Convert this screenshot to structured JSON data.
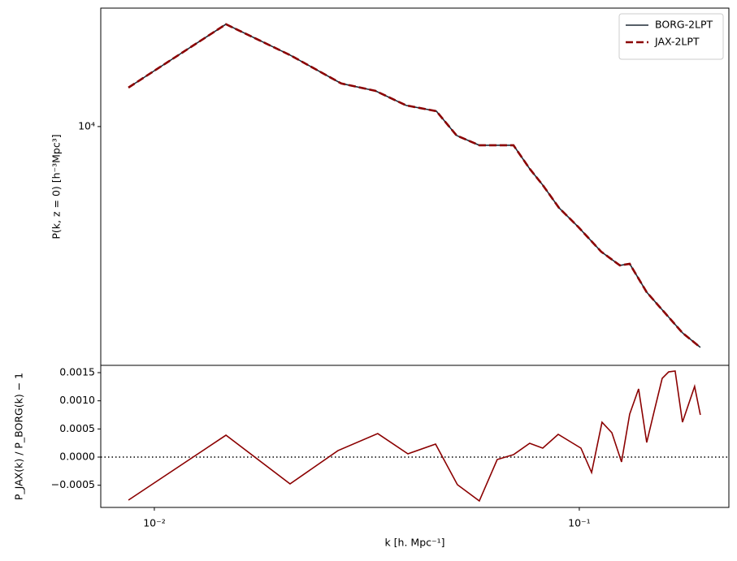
{
  "chart_data": [
    {
      "type": "line",
      "xscale": "log",
      "yscale": "log",
      "ylabel": "P(k, z = 0) [h⁻³Mpc³]",
      "xlim": [
        0.00748,
        0.2249
      ],
      "ylim": [
        1778,
        23550
      ],
      "yticks": [
        {
          "value": 10000,
          "label": "10⁴"
        }
      ],
      "legend": "upper right",
      "x": [
        0.00869,
        0.01474,
        0.02086,
        0.02753,
        0.03312,
        0.03915,
        0.04609,
        0.05143,
        0.05817,
        0.07,
        0.07642,
        0.08203,
        0.08958,
        0.09956,
        0.1126,
        0.1246,
        0.1314,
        0.1441,
        0.1588,
        0.1749,
        0.1927
      ],
      "series": [
        {
          "name": "BORG-2LPT",
          "color": "#1f2a36",
          "linestyle": "solid",
          "values": [
            13255,
            20960,
            16770,
            13655,
            12950,
            11650,
            11180,
            9375,
            8735,
            8735,
            7370,
            6550,
            5555,
            4830,
            4045,
            3663,
            3706,
            3017,
            2604,
            2249,
            2024
          ]
        },
        {
          "name": "JAX-2LPT",
          "color": "#8b0000",
          "linestyle": "dashed",
          "values": [
            13255,
            20960,
            16770,
            13655,
            12950,
            11650,
            11180,
            9375,
            8735,
            8735,
            7370,
            6550,
            5555,
            4830,
            4045,
            3663,
            3706,
            3017,
            2604,
            2249,
            2024
          ]
        }
      ]
    },
    {
      "type": "line",
      "xscale": "log",
      "yscale": "linear",
      "xlabel": "k [h. Mpc⁻¹]",
      "ylabel": "P_JAX(k) / P_BORG(k) − 1",
      "xlim": [
        0.00748,
        0.2249
      ],
      "ylim": [
        -0.000894,
        0.00163
      ],
      "xticks": [
        {
          "value": 0.01,
          "label": "10⁻²"
        },
        {
          "value": 0.1,
          "label": "10⁻¹"
        }
      ],
      "yticks": [
        {
          "value": -0.0005,
          "label": "−0.0005"
        },
        {
          "value": 0,
          "label": "0.0000"
        },
        0.0005,
        {
          "value": 0.001,
          "label": "0.0010"
        },
        0.0015
      ],
      "hline": 0,
      "color": "#8b0000",
      "x": [
        0.00869,
        0.01474,
        0.02086,
        0.02704,
        0.03355,
        0.03951,
        0.04589,
        0.05166,
        0.05817,
        0.0641,
        0.07,
        0.07642,
        0.08203,
        0.0892,
        0.1009,
        0.1069,
        0.1131,
        0.1193,
        0.1257,
        0.1314,
        0.1379,
        0.1441,
        0.1506,
        0.1567,
        0.1623,
        0.1681,
        0.1749,
        0.1868,
        0.1927
      ],
      "values": [
        -0.000764,
        0.000389,
        -0.000476,
        0.000115,
        0.000418,
        5.8e-05,
        0.000231,
        -0.00049,
        -0.000779,
        -4.3e-05,
        4.3e-05,
        0.000245,
        0.000159,
        0.000404,
        0.000159,
        -0.000274,
        0.00062,
        0.000433,
        -8.7e-05,
        0.000764,
        0.001212,
        0.00026,
        0.000865,
        0.001399,
        0.001514,
        0.001529,
        0.00062,
        0.001255,
        0.00075
      ]
    }
  ]
}
